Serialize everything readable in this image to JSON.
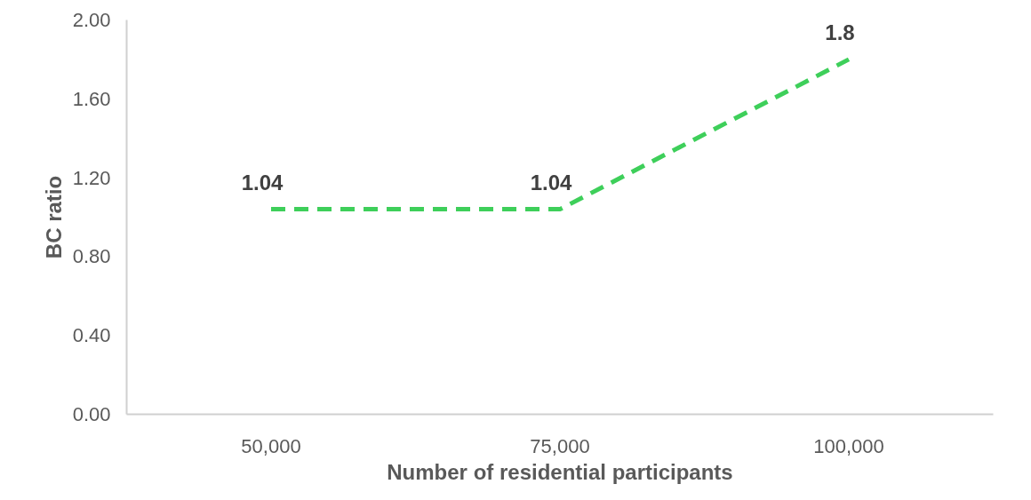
{
  "chart_data": {
    "type": "line",
    "xlabel": "Number of residential participants",
    "ylabel": "BC ratio",
    "categories": [
      "50,000",
      "75,000",
      "100,000"
    ],
    "series": [
      {
        "color": "#3ecf5a",
        "values": [
          1.04,
          1.04,
          1.8
        ]
      }
    ],
    "ylim": [
      0,
      2
    ],
    "yticks": [
      {
        "value": 0,
        "label": "0.00"
      },
      {
        "value": 0.4,
        "label": "0.40"
      },
      {
        "value": 0.8,
        "label": "0.80"
      },
      {
        "value": 1.2,
        "label": "1.20"
      },
      {
        "value": 1.6,
        "label": "1.60"
      },
      {
        "value": 2,
        "label": "2.00"
      }
    ],
    "grid": false,
    "marker": "none",
    "line_style": "dashed",
    "data_labels": true
  }
}
